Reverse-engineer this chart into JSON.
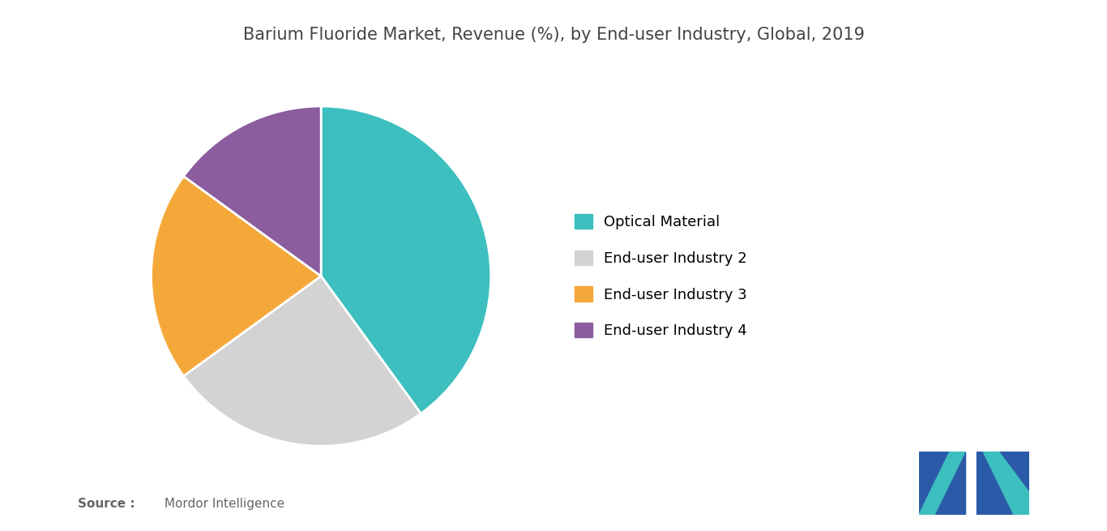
{
  "title": "Barium Fluoride Market, Revenue (%), by End-user Industry, Global, 2019",
  "labels": [
    "Optical Material",
    "End-user Industry 2",
    "End-user Industry 3",
    "End-user Industry 4"
  ],
  "values": [
    40,
    25,
    20,
    15
  ],
  "colors": [
    "#3DBFBF",
    "#D3D3D3",
    "#F5A83A",
    "#8B5C9E"
  ],
  "legend_labels": [
    "Optical Material",
    "End-user Industry 2",
    "End-user Industry 3",
    "End-user Industry 4"
  ],
  "startangle": 90,
  "source_bold": "Source :",
  "source_normal": " Mordor Intelligence",
  "title_fontsize": 15,
  "legend_fontsize": 13,
  "background_color": "#FFFFFF",
  "logo_teal": "#3DBFBF",
  "logo_navy": "#2B5BA8"
}
